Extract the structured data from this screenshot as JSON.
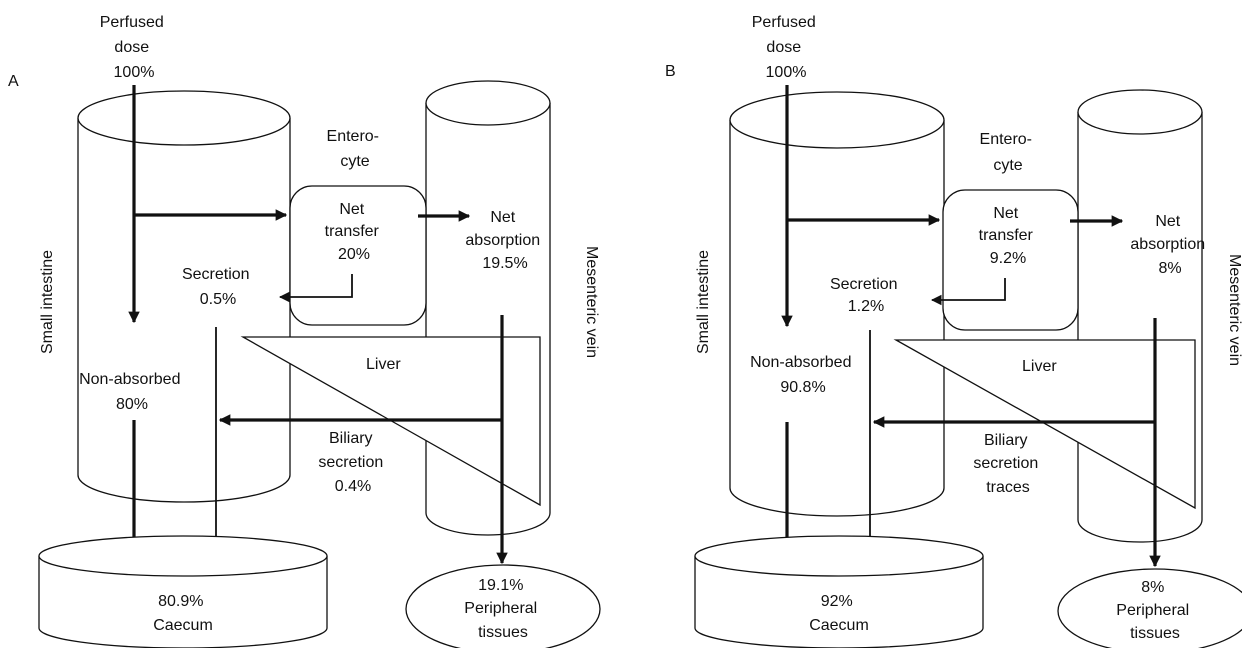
{
  "panels": [
    {
      "id": "A",
      "panel_label": "A",
      "perfused": [
        "Perfused",
        "dose",
        "100%"
      ],
      "enterocyte": [
        "Entero-",
        "cyte"
      ],
      "net_transfer": [
        "Net",
        "transfer",
        "20%"
      ],
      "net_absorption": [
        "Net",
        "absorption",
        "19.5%"
      ],
      "secretion": [
        "Secretion",
        "0.5%"
      ],
      "small_intestine": "Small intestine",
      "mesenteric_vein": "Mesenteric vein",
      "liver": "Liver",
      "non_absorbed": [
        "Non-absorbed",
        "80%"
      ],
      "biliary": [
        "Biliary",
        "secretion",
        "0.4%"
      ],
      "caecum": [
        "80.9%",
        "Caecum"
      ],
      "peripheral": [
        "19.1%",
        "Peripheral",
        "tissues"
      ]
    },
    {
      "id": "B",
      "panel_label": "B",
      "perfused": [
        "Perfused",
        "dose",
        "100%"
      ],
      "enterocyte": [
        "Entero-",
        "cyte"
      ],
      "net_transfer": [
        "Net",
        "transfer",
        "9.2%"
      ],
      "net_absorption": [
        "Net",
        "absorption",
        "8%"
      ],
      "secretion": [
        "Secretion",
        "1.2%"
      ],
      "small_intestine": "Small intestine",
      "mesenteric_vein": "Mesenteric vein",
      "liver": "Liver",
      "non_absorbed": [
        "Non-absorbed",
        "90.8%"
      ],
      "biliary": [
        "Biliary",
        "secretion",
        "traces"
      ],
      "caecum": [
        "92%",
        "Caecum"
      ],
      "peripheral": [
        "8%",
        "Peripheral",
        "tissues"
      ]
    }
  ]
}
